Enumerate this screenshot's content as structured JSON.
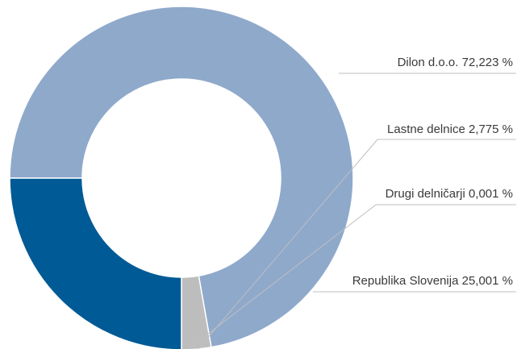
{
  "chart_data": {
    "type": "pie",
    "variant": "donut",
    "slices": [
      {
        "label": "Dilon d.o.o. 72,223 %",
        "name": "Dilon d.o.o.",
        "value": 72.223,
        "color": "#8FA9CB"
      },
      {
        "label": "Lastne delnice 2,775 %",
        "name": "Lastne delnice",
        "value": 2.775,
        "color": "#BDBDBD"
      },
      {
        "label": "Drugi delničarji 0,001 %",
        "name": "Drugi delničarji",
        "value": 0.001,
        "color": "#BDBDBD"
      },
      {
        "label": "Republika Slovenija 25,001 %",
        "name": "Republika Slovenija",
        "value": 25.001,
        "color": "#005A96"
      }
    ],
    "legend": "none",
    "leader_line_color": "#BFBFBF"
  }
}
